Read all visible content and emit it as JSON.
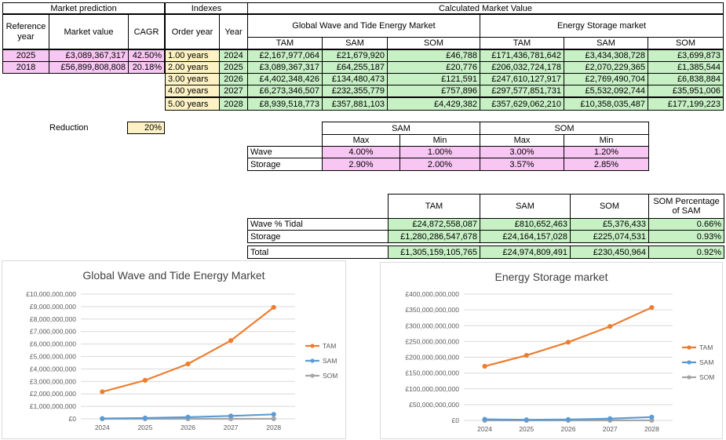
{
  "market_prediction": {
    "title": "Market prediction",
    "col_ref_year": "Reference year",
    "col_market_value": "Market value",
    "col_cagr": "CAGR",
    "rows": [
      {
        "year": "2025",
        "value": "£3,089,367,317",
        "cagr": "42.50%"
      },
      {
        "year": "2018",
        "value": "£56,899,808,808",
        "cagr": "20.18%"
      }
    ]
  },
  "indexes": {
    "title": "Indexes",
    "col_order_year": "Order year",
    "col_year": "Year",
    "rows": [
      {
        "order": "1.00 years",
        "year": "2024"
      },
      {
        "order": "2.00 years",
        "year": "2025"
      },
      {
        "order": "3.00 years",
        "year": "2026"
      },
      {
        "order": "4.00 years",
        "year": "2027"
      },
      {
        "order": "5.00 years",
        "year": "2028"
      }
    ]
  },
  "calculated": {
    "title": "Calculated Market Value",
    "wave_title": "Global Wave and Tide Energy Market",
    "storage_title": "Energy Storage market",
    "col_tam": "TAM",
    "col_sam": "SAM",
    "col_som": "SOM",
    "rows": [
      {
        "w_tam": "£2,167,977,064",
        "w_sam": "£21,679,920",
        "w_som": "£46,788",
        "s_tam": "£171,436,781,642",
        "s_sam": "£3,434,308,728",
        "s_som": "£3,699,873"
      },
      {
        "w_tam": "£3,089,367,317",
        "w_sam": "£64,255,187",
        "w_som": "£20,776",
        "s_tam": "£206,032,724,178",
        "s_sam": "£2,070,229,365",
        "s_som": "£1,385,544"
      },
      {
        "w_tam": "£4,402,348,426",
        "w_sam": "£134,480,473",
        "w_som": "£121,591",
        "s_tam": "£247,610,127,917",
        "s_sam": "£2,769,490,704",
        "s_som": "£6,838,884"
      },
      {
        "w_tam": "£6,273,346,507",
        "w_sam": "£232,355,779",
        "w_som": "£757,896",
        "s_tam": "£297,577,851,731",
        "s_sam": "£5,532,092,744",
        "s_som": "£35,951,006"
      },
      {
        "w_tam": "£8,939,518,773",
        "w_sam": "£357,881,103",
        "w_som": "£4,429,382",
        "s_tam": "£357,629,062,210",
        "s_sam": "£10,358,035,487",
        "s_som": "£177,199,223"
      }
    ]
  },
  "reduction": {
    "label": "Reduction",
    "value": "20%"
  },
  "ranges": {
    "sam": "SAM",
    "som": "SOM",
    "max": "Max",
    "min": "Min",
    "rows": [
      {
        "label": "Wave",
        "sam_max": "4.00%",
        "sam_min": "1.00%",
        "som_max": "3.00%",
        "som_min": "1.20%"
      },
      {
        "label": "Storage",
        "sam_max": "2.90%",
        "sam_min": "2.00%",
        "som_max": "3.57%",
        "som_min": "2.85%"
      }
    ]
  },
  "summary": {
    "col_tam": "TAM",
    "col_sam": "SAM",
    "col_som": "SOM",
    "col_pct": "SOM Percentage of SAM",
    "rows": [
      {
        "label": "Wave % Tidal",
        "tam": "£24,872,558,087",
        "sam": "£810,652,463",
        "som": "£5,376,433",
        "pct": "0.66%"
      },
      {
        "label": "Storage",
        "tam": "£1,280,286,547,678",
        "sam": "£24,164,157,028",
        "som": "£225,074,531",
        "pct": "0.93%"
      }
    ],
    "total": {
      "label": "Total",
      "tam": "£1,305,159,105,765",
      "sam": "£24,974,809,491",
      "som": "£230,450,964",
      "pct": "0.92%"
    }
  },
  "colors": {
    "tam": "#ed7d31",
    "sam": "#5b9bd5",
    "som": "#a5a5a5",
    "pink": "#f7c6f3",
    "green": "#c7f0c5",
    "yellow": "#fdf2c3"
  },
  "chart_data": [
    {
      "type": "line",
      "title": "Global Wave and Tide Energy Market",
      "x": [
        "2024",
        "2025",
        "2026",
        "2027",
        "2028"
      ],
      "ylim": [
        0,
        10000000000
      ],
      "yticks": [
        "£0",
        "£1,000,000,000",
        "£2,000,000,000",
        "£3,000,000,000",
        "£4,000,000,000",
        "£5,000,000,000",
        "£6,000,000,000",
        "£7,000,000,000",
        "£8,000,000,000",
        "£9,000,000,000",
        "£10,000,000,000"
      ],
      "legend": "right",
      "series": [
        {
          "name": "TAM",
          "values": [
            2167977064,
            3089367317,
            4402348426,
            6273346507,
            8939518773
          ]
        },
        {
          "name": "SAM",
          "values": [
            21679920,
            64255187,
            134480473,
            232355779,
            357881103
          ]
        },
        {
          "name": "SOM",
          "values": [
            46788,
            20776,
            121591,
            757896,
            4429382
          ]
        }
      ]
    },
    {
      "type": "line",
      "title": "Energy Storage market",
      "x": [
        "2024",
        "2025",
        "2026",
        "2027",
        "2028"
      ],
      "ylim": [
        0,
        400000000000
      ],
      "yticks": [
        "£0",
        "£50,000,000,000",
        "£100,000,000,000",
        "£150,000,000,000",
        "£200,000,000,000",
        "£250,000,000,000",
        "£300,000,000,000",
        "£350,000,000,000",
        "£400,000,000,000"
      ],
      "legend": "right",
      "series": [
        {
          "name": "TAM",
          "values": [
            171436781642,
            206032724178,
            247610127917,
            297577851731,
            357629062210
          ]
        },
        {
          "name": "SAM",
          "values": [
            3434308728,
            2070229365,
            2769490704,
            5532092744,
            10358035487
          ]
        },
        {
          "name": "SOM",
          "values": [
            3699873,
            1385544,
            6838884,
            35951006,
            177199223
          ]
        }
      ]
    }
  ]
}
